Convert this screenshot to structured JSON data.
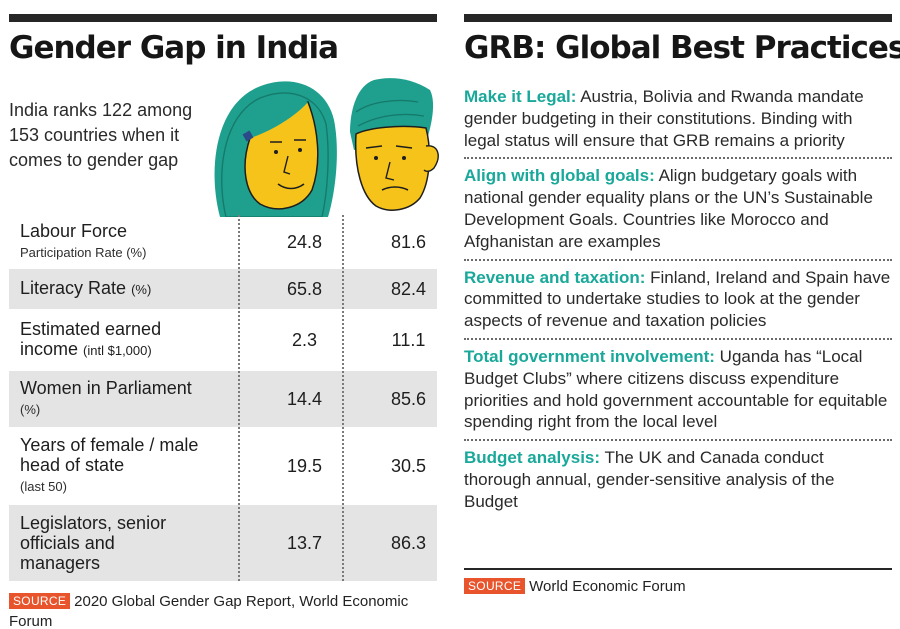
{
  "left": {
    "title": "Gender Gap in India",
    "intro": "India ranks 122 among 153 countries when it comes to gender gap",
    "rows": [
      {
        "label": "Labour Force",
        "sub": "Participation Rate (%)",
        "inline_sub": "",
        "female": "24.8",
        "male": "81.6"
      },
      {
        "label": "Literacy Rate",
        "sub": "",
        "inline_sub": "(%)",
        "female": "65.8",
        "male": "82.4"
      },
      {
        "label": "Estimated earned income",
        "sub": "",
        "inline_sub": "(intl $1,000)",
        "female": "2.3",
        "male": "11.1"
      },
      {
        "label": "Women in Parliament",
        "sub": "(%)",
        "inline_sub": "",
        "female": "14.4",
        "male": "85.6"
      },
      {
        "label": "Years of female / male head of state",
        "sub": "(last 50)",
        "inline_sub": "",
        "female": "19.5",
        "male": "30.5"
      },
      {
        "label": "Legislators, senior officials and managers",
        "sub": "",
        "inline_sub": "",
        "female": "13.7",
        "male": "86.3"
      }
    ],
    "source_tag": "SOURCE",
    "source_text": "2020 Global Gender Gap Report, World Economic Forum"
  },
  "right": {
    "title": "GRB: Global Best Practices",
    "items": [
      {
        "keyword": "Make it Legal:",
        "text": " Austria, Bolivia and Rwanda mandate gender budgeting in their constitutions. Binding with legal status will ensure that GRB remains a priority"
      },
      {
        "keyword": "Align with global goals:",
        "text": " Align budgetary goals with national gender equality plans or the UN’s Sustainable Development Goals. Countries like Morocco and Afghanistan are examples"
      },
      {
        "keyword": "Revenue and taxation:",
        "text": " Finland, Ireland and Spain have committed to undertake studies to look at the gender aspects of revenue and taxation policies"
      },
      {
        "keyword": "Total government involvement:",
        "text": " Uganda has “Local Budget Clubs” where citizens discuss expenditure priorities and hold government accountable for equitable spending right from the local level"
      },
      {
        "keyword": "Budget analysis:",
        "text": " The UK and Canada conduct thorough annual, gender-sensitive analysis of the Budget"
      }
    ],
    "source_tag": "SOURCE",
    "source_text": "World Economic Forum"
  },
  "colors": {
    "accent_teal": "#19a89a",
    "source_orange": "#e8542c",
    "face_yellow": "#f5c31a",
    "hair_teal": "#1fa08e",
    "row_shade": "#e4e4e4"
  }
}
